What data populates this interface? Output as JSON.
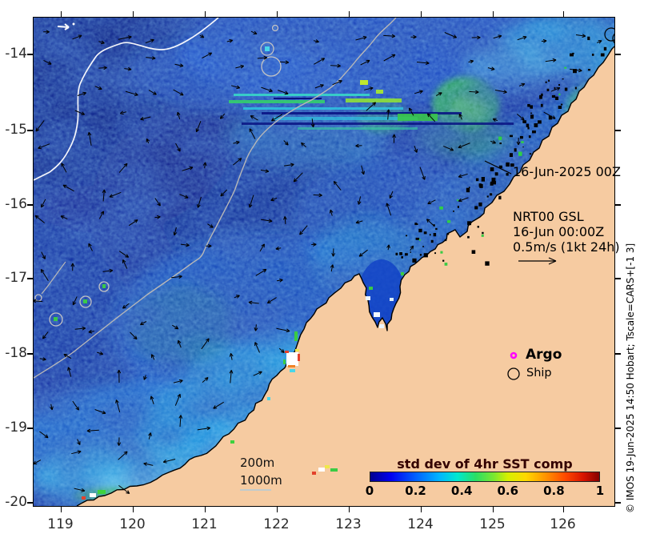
{
  "map": {
    "date_annotation": "16-Jun-2025 00Z",
    "velocity_block": {
      "line1": "NRT00 GSL",
      "line2": "16-Jun 00:00Z",
      "line3": "0.5m/s (1kt 24h)"
    },
    "legend": {
      "argo_label": "Argo",
      "ship_label": "Ship",
      "argo_marker_color": "#FF00FF",
      "ship_marker_color": "#000000"
    },
    "depth_contours": {
      "c200": "200m",
      "c1000": "1000m"
    },
    "colorbar": {
      "title": "std dev of 4hr SST comp",
      "ticks": [
        "0",
        "0.2",
        "0.4",
        "0.6",
        "0.8",
        "1"
      ],
      "min": 0,
      "max": 1
    },
    "axes": {
      "x_tick_labels": [
        "119",
        "120",
        "121",
        "122",
        "123",
        "124",
        "125",
        "126"
      ],
      "y_tick_labels": [
        "-14",
        "-15",
        "-16",
        "-17",
        "-18",
        "-19",
        "-20"
      ]
    },
    "credit": "© IMOS 19-Jun-2025 14:50 Hobart; Tscale=CARS+[-1 3]",
    "colors": {
      "land": "#F6CBA1",
      "ocean_deep": "#0C2098",
      "contour_200m": "#FFFFFF",
      "contour_1000m": "#BBBBBB",
      "argo": "#FF00FF"
    }
  }
}
